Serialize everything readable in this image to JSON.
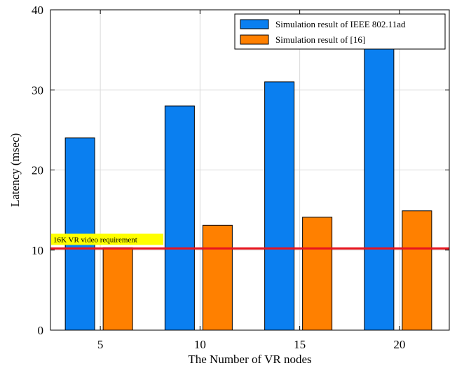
{
  "chart_data": {
    "type": "bar",
    "categories": [
      "5",
      "10",
      "15",
      "20"
    ],
    "series": [
      {
        "name": "Simulation result of IEEE 802.11ad",
        "values": [
          24,
          28,
          31,
          35.3
        ],
        "color": "#0a7ff0"
      },
      {
        "name": "Simulation result of [16]",
        "values": [
          10.3,
          13.1,
          14.1,
          14.9
        ],
        "color": "#ff8000"
      }
    ],
    "xlabel": "The Number of VR nodes",
    "ylabel": "Latency (msec)",
    "ylim": [
      0,
      40
    ],
    "yticks": [
      0,
      10,
      20,
      30,
      40
    ],
    "grid": true,
    "legend_position": "top-right",
    "reference_line": {
      "value": 10.2,
      "label": "16K VR video requirement",
      "color": "#e8141e",
      "label_bg": "#ffff00"
    }
  }
}
